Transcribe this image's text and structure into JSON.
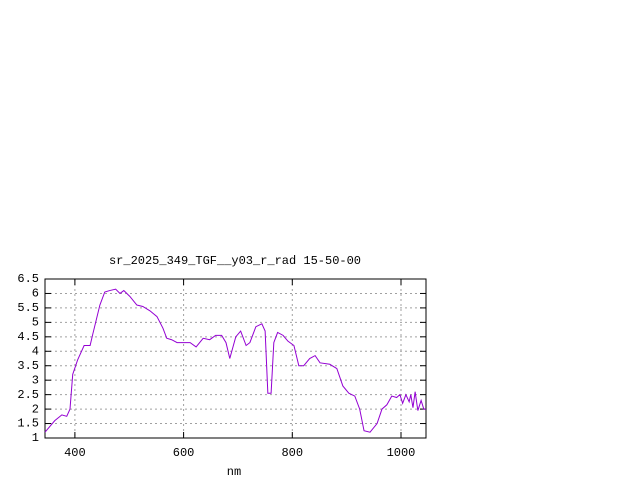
{
  "chart_data": {
    "type": "line",
    "title": "sr_2025_349_TGF__y03_r_rad 15-50-00",
    "xlabel": "nm",
    "x": [
      345,
      363,
      376,
      385,
      391,
      396,
      405,
      417,
      428,
      433,
      446,
      455,
      464,
      475,
      483,
      490,
      501,
      514,
      525,
      538,
      551,
      562,
      569,
      578,
      588,
      602,
      612,
      623,
      636,
      648,
      659,
      670,
      678,
      685,
      696,
      705,
      715,
      722,
      733,
      744,
      750,
      755,
      761,
      766,
      773,
      783,
      792,
      803,
      812,
      821,
      832,
      842,
      851,
      869,
      882,
      893,
      904,
      915,
      924,
      932,
      943,
      956,
      965,
      974,
      983,
      992,
      998,
      1003,
      1009,
      1015,
      1018,
      1022,
      1026,
      1031,
      1037,
      1042,
      1046
    ],
    "values": [
      1.2,
      1.6,
      1.8,
      1.75,
      2.0,
      3.2,
      3.7,
      4.2,
      4.2,
      4.6,
      5.6,
      6.05,
      6.1,
      6.15,
      6.0,
      6.1,
      5.9,
      5.6,
      5.55,
      5.4,
      5.2,
      4.8,
      4.45,
      4.4,
      4.3,
      4.3,
      4.3,
      4.15,
      4.45,
      4.4,
      4.55,
      4.55,
      4.3,
      3.75,
      4.5,
      4.7,
      4.2,
      4.3,
      4.85,
      4.95,
      4.7,
      2.55,
      2.55,
      4.3,
      4.65,
      4.55,
      4.35,
      4.2,
      3.5,
      3.5,
      3.75,
      3.85,
      3.6,
      3.55,
      3.4,
      2.8,
      2.55,
      2.45,
      2.0,
      1.25,
      1.2,
      1.5,
      2.0,
      2.15,
      2.45,
      2.4,
      2.5,
      2.2,
      2.5,
      2.25,
      2.5,
      2.05,
      2.6,
      1.95,
      2.3,
      2.0,
      2.0
    ],
    "color": "#9400d3",
    "xlim": [
      345,
      1046
    ],
    "xticks": [
      400,
      600,
      800,
      1000
    ],
    "ylim": [
      1,
      6.5
    ],
    "yticks": [
      1,
      1.5,
      2,
      2.5,
      3,
      3.5,
      4,
      4.5,
      5,
      5.5,
      6,
      6.5
    ],
    "grid": true
  }
}
